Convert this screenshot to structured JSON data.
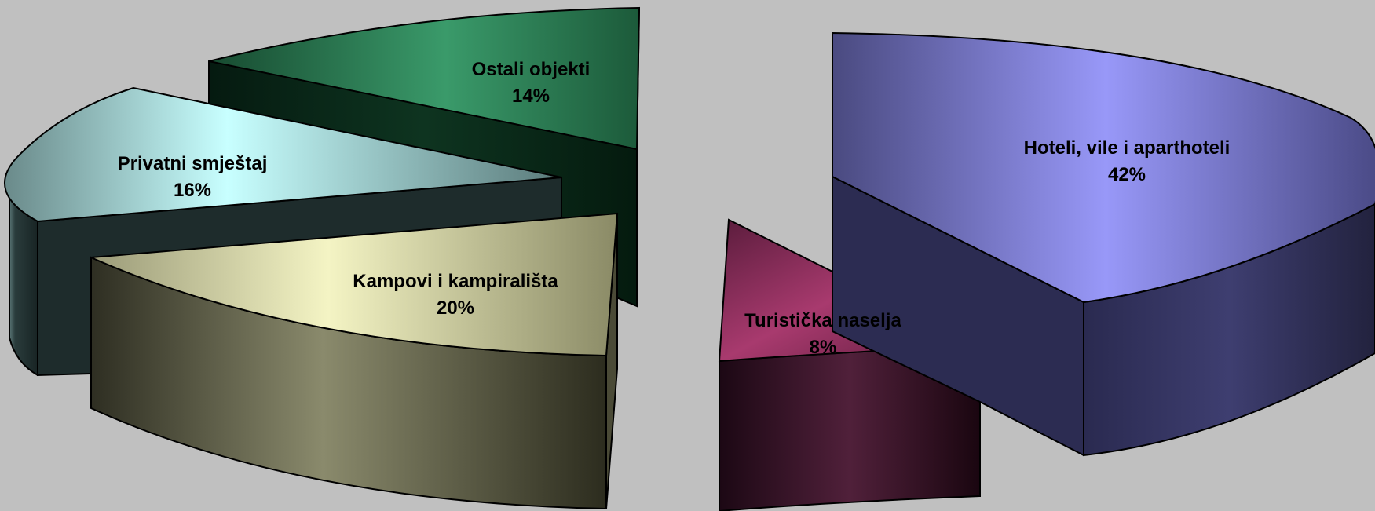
{
  "chart_data": {
    "type": "pie",
    "style": "3d-exploded",
    "title": "",
    "slices": [
      {
        "name": "Hoteli, vile i aparthoteli",
        "percent_label": "42%",
        "value": 42,
        "color": "#8c8cf0"
      },
      {
        "name": "Turistička naselja",
        "percent_label": "8%",
        "value": 8,
        "color": "#8a2c5c"
      },
      {
        "name": "Kampovi i kampirališta",
        "percent_label": "20%",
        "value": 20,
        "color": "#d8d8a8"
      },
      {
        "name": "Privatni smještaj",
        "percent_label": "16%",
        "value": 16,
        "color": "#a8f0f0"
      },
      {
        "name": "Ostali objekti",
        "percent_label": "14%",
        "value": 14,
        "color": "#2e8a5c"
      }
    ]
  }
}
